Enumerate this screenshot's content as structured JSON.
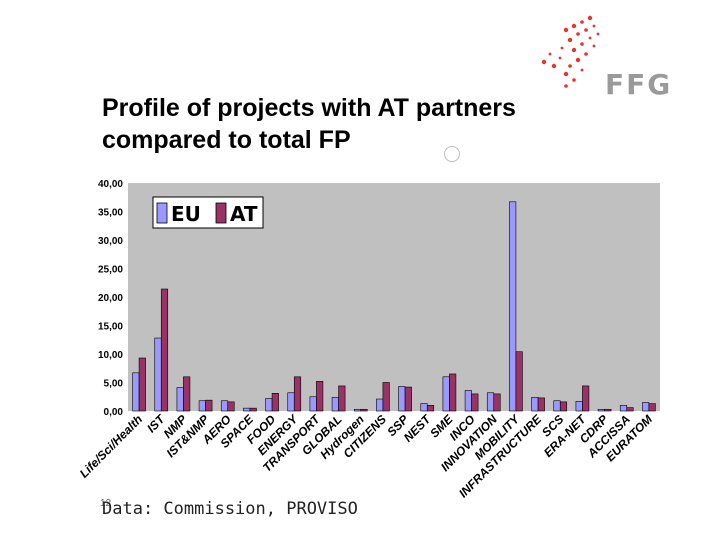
{
  "header": {
    "title_line1": "Profile of projects with AT partners",
    "title_line2": "compared to total FP",
    "logo_text": "FFG",
    "logo_icon": "dotted-arrow-logo-icon"
  },
  "footer": {
    "source": "Data: Commission, PROVISO",
    "slide_number": "12"
  },
  "colors": {
    "eu": "#9999ff",
    "at": "#993366",
    "plot_bg": "#c0c0c0",
    "logo_red": "#e8312f"
  },
  "chart_data": {
    "type": "bar",
    "categories": [
      "Life/Sci/Health",
      "IST",
      "NMP",
      "IST&NMP",
      "AERO",
      "SPACE",
      "FOOD",
      "ENERGY",
      "TRANSPORT",
      "GLOBAL",
      "Hydrogen",
      "CITIZENS",
      "SSP",
      "NEST",
      "SME",
      "INCO",
      "INNOVATION",
      "MOBILITY",
      "INFRASTRUCTURE",
      "SCS",
      "ERA-NET",
      "CDRP",
      "ACCISSA",
      "EURATOM"
    ],
    "series": [
      {
        "name": "EU",
        "values": [
          6.7,
          12.8,
          4.1,
          1.8,
          1.8,
          0.5,
          2.2,
          3.2,
          2.5,
          2.4,
          0.3,
          2.1,
          4.3,
          1.3,
          6.0,
          3.6,
          3.2,
          36.7,
          2.4,
          1.8,
          1.7,
          0.3,
          1.0,
          1.5
        ]
      },
      {
        "name": "AT",
        "values": [
          9.3,
          21.4,
          6.0,
          1.9,
          1.6,
          0.5,
          3.1,
          6.0,
          5.2,
          4.4,
          0.3,
          5.0,
          4.2,
          1.0,
          6.5,
          3.0,
          3.0,
          10.4,
          2.3,
          1.6,
          4.4,
          0.3,
          0.6,
          1.3
        ]
      }
    ],
    "y_ticks": [
      "0,00",
      "5,00",
      "10,00",
      "15,00",
      "20,00",
      "25,00",
      "30,00",
      "35,00",
      "40,00"
    ],
    "ylim": [
      0,
      40
    ],
    "legend": {
      "position": "top-left",
      "labels": [
        "EU",
        "AT"
      ]
    },
    "grid": false
  }
}
